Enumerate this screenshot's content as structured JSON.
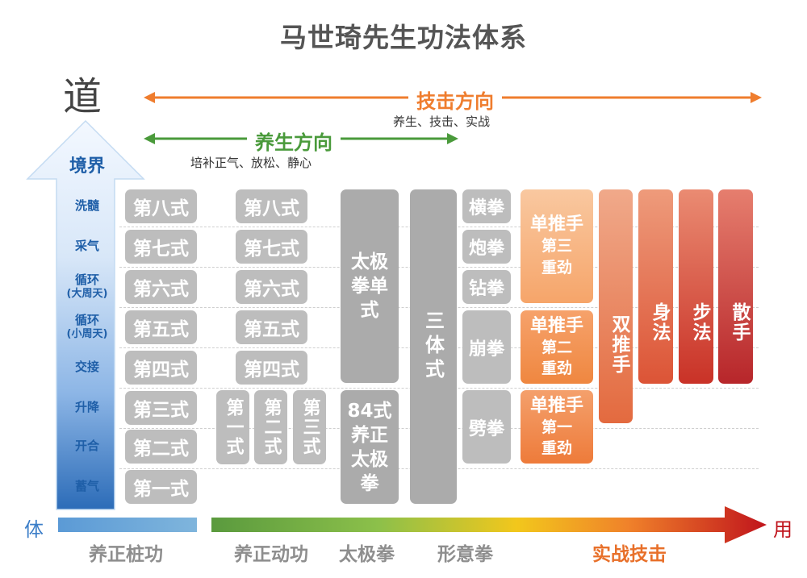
{
  "title": "马世琦先生功法体系",
  "dao": "道",
  "jingjie": "境界",
  "jiji": {
    "label": "技击方向",
    "sub": "养生、技击、实战"
  },
  "yangsheng": {
    "label": "养生方向",
    "sub": "培补正气、放松、静心"
  },
  "levels": [
    {
      "l1": "洗髓",
      "l2": ""
    },
    {
      "l1": "采气",
      "l2": ""
    },
    {
      "l1": "循环",
      "l2": "(大周天)"
    },
    {
      "l1": "循环",
      "l2": "(小周天)"
    },
    {
      "l1": "交接",
      "l2": ""
    },
    {
      "l1": "升降",
      "l2": ""
    },
    {
      "l1": "开合",
      "l2": ""
    },
    {
      "l1": "蓄气",
      "l2": ""
    }
  ],
  "col1": [
    "第八式",
    "第七式",
    "第六式",
    "第五式",
    "第四式",
    "第三式",
    "第二式",
    "第一式"
  ],
  "col2": [
    "第八式",
    "第七式",
    "第六式",
    "第五式",
    "第四式"
  ],
  "col2_small": [
    "第一式",
    "第二式",
    "第三式"
  ],
  "taiji_single": "太极拳单式",
  "taiji_84": "84式养正太极拳",
  "santi": "三体式",
  "fists": [
    "横拳",
    "炮拳",
    "钻拳",
    "崩拳",
    "劈拳"
  ],
  "tuishou": [
    {
      "a": "单推手",
      "b": "第三",
      "c": "重劲"
    },
    {
      "a": "单推手",
      "b": "第二",
      "c": "重劲"
    },
    {
      "a": "单推手",
      "b": "第一",
      "c": "重劲"
    }
  ],
  "shuang": "双推手",
  "shenfa": "身法",
  "bufa": "步法",
  "sanshou": "散手",
  "ti": "体",
  "yong": "用",
  "bottom": [
    "养正桩功",
    "养正动功",
    "太极拳",
    "形意拳",
    "实战技击"
  ],
  "colors": {
    "blue": "#1f5fa8",
    "orange": "#ef7d2e",
    "green": "#4a9a3b",
    "red": "#c0141c"
  }
}
